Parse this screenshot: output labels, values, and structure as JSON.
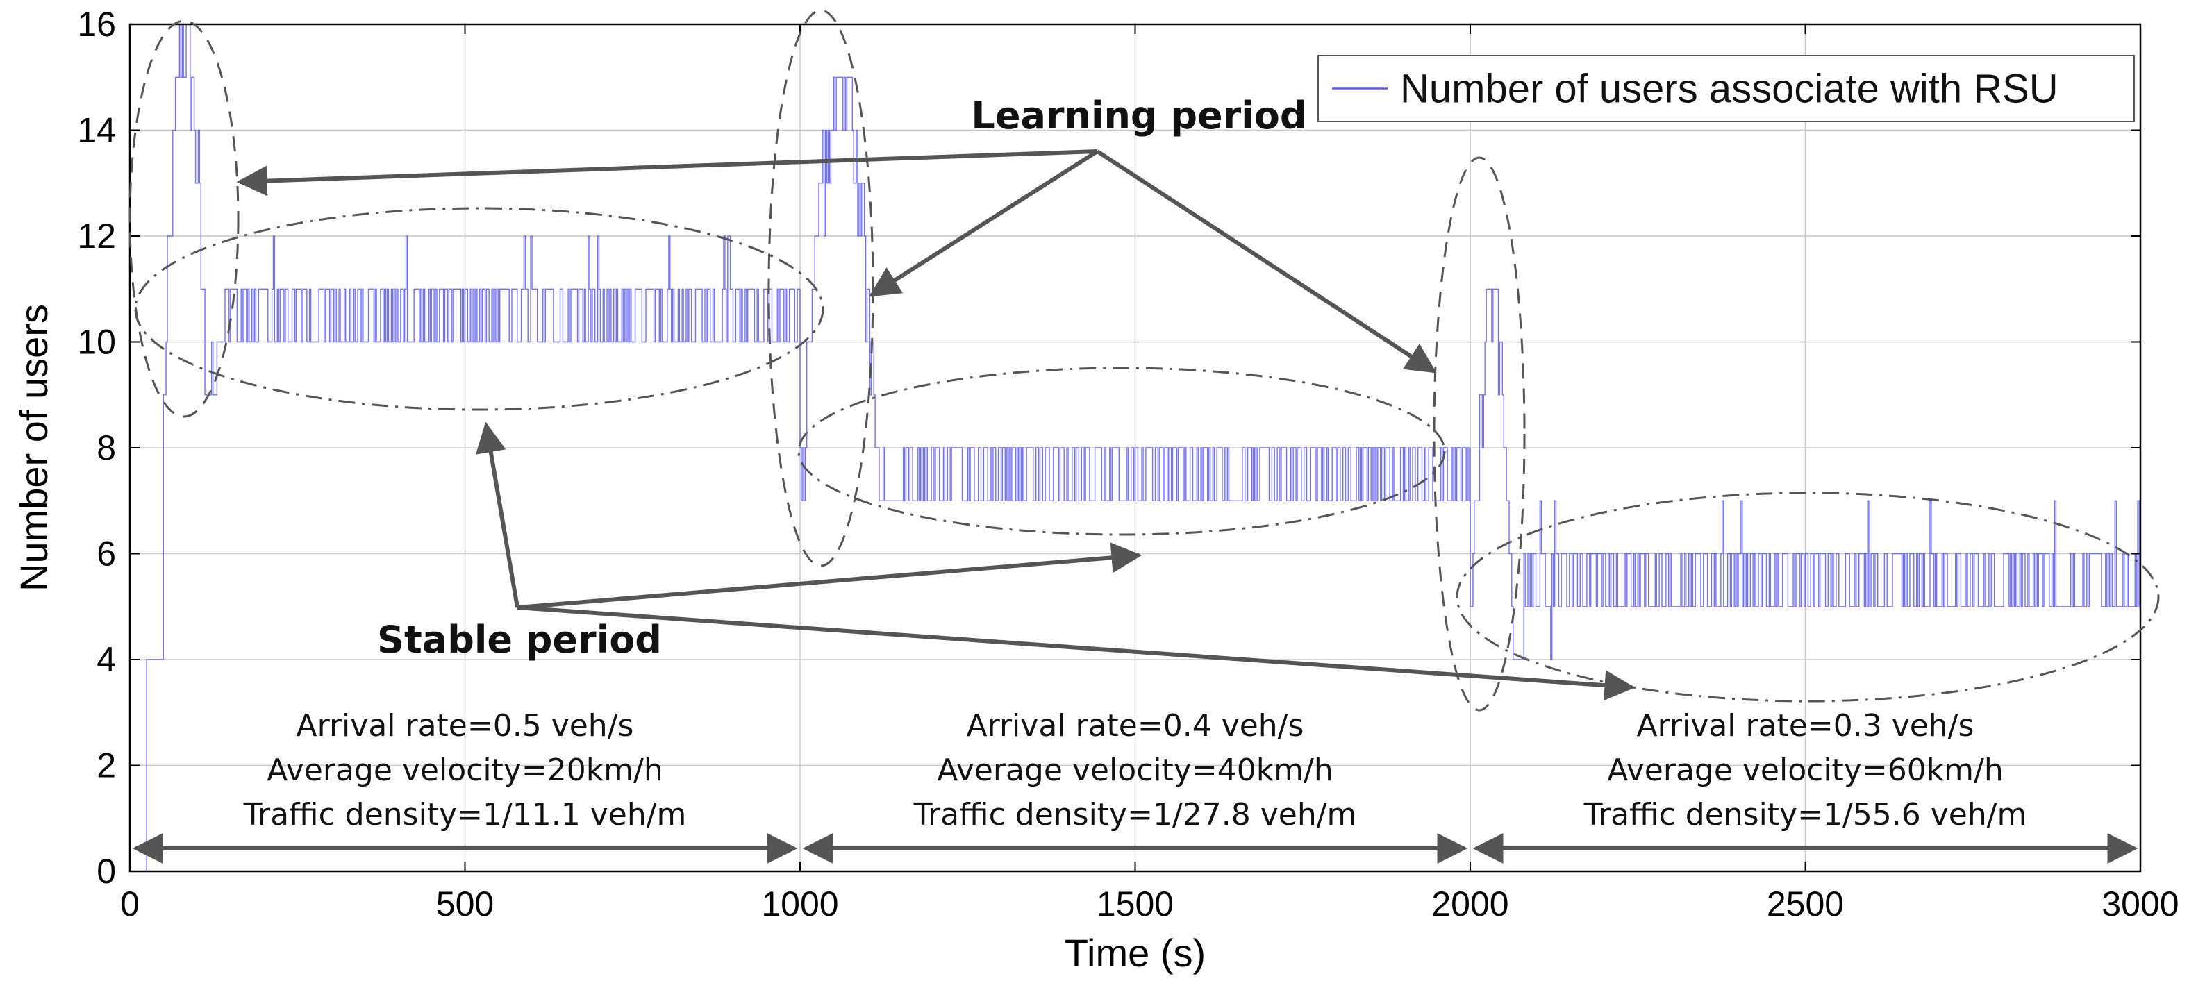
{
  "chart_data": {
    "type": "line",
    "xlabel": "Time (s)",
    "ylabel": "Number of users",
    "xlim": [
      0,
      3000
    ],
    "ylim": [
      0,
      16
    ],
    "x_ticks": [
      "0",
      "500",
      "1000",
      "1500",
      "2000",
      "2500",
      "3000"
    ],
    "y_ticks": [
      "0",
      "2",
      "4",
      "6",
      "8",
      "10",
      "12",
      "14",
      "16"
    ],
    "grid": true,
    "legend": {
      "position": "top-right",
      "entries": [
        "Number of users associate with RSU"
      ]
    },
    "series": [
      {
        "name": "Number of users associate with RSU",
        "color": "#5b5bf0",
        "segments": [
          {
            "x_range": [
              0,
              50
            ],
            "description": "ramp up",
            "values": [
              0,
              4,
              9
            ]
          },
          {
            "x_range": [
              50,
              130
            ],
            "phase": "learning",
            "min": 9,
            "max": 16
          },
          {
            "x_range": [
              130,
              1000
            ],
            "phase": "stable",
            "min": 10,
            "max": 12,
            "mode": 11
          },
          {
            "x_range": [
              1000,
              1150
            ],
            "phase": "learning",
            "min": 7,
            "max": 15
          },
          {
            "x_range": [
              1150,
              2000
            ],
            "phase": "stable",
            "min": 7,
            "max": 8,
            "mode": 8
          },
          {
            "x_range": [
              2000,
              2080
            ],
            "phase": "learning",
            "min": 4,
            "max": 11
          },
          {
            "x_range": [
              2080,
              3000
            ],
            "phase": "stable",
            "min": 5,
            "max": 7,
            "mode": 6
          }
        ]
      }
    ],
    "annotations": {
      "learning_label": "Learning period",
      "stable_label": "Stable period",
      "regions": [
        {
          "x_range": [
            0,
            1000
          ],
          "lines": [
            "Arrival rate=0.5 veh/s",
            "Average velocity=20km/h",
            "Traffic density=1/11.1 veh/m"
          ]
        },
        {
          "x_range": [
            1000,
            2000
          ],
          "lines": [
            "Arrival rate=0.4 veh/s",
            "Average velocity=40km/h",
            "Traffic density=1/27.8 veh/m"
          ]
        },
        {
          "x_range": [
            2000,
            3000
          ],
          "lines": [
            "Arrival rate=0.3 veh/s",
            "Average velocity=60km/h",
            "Traffic density=1/55.6 veh/m"
          ]
        }
      ]
    }
  }
}
